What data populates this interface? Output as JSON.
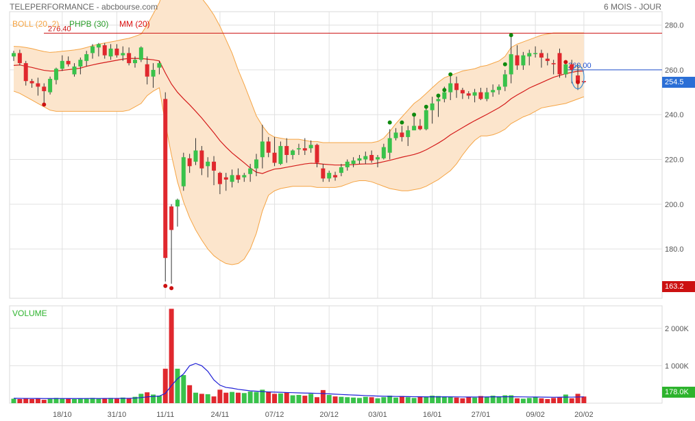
{
  "header": {
    "title": "TELEPERFORMANCE - abcbourse.com",
    "period": "6 MOIS - JOUR"
  },
  "legend": [
    {
      "label": "BOLL (20, 2)",
      "color": "#f5a443"
    },
    {
      "label": "PHPB (30)",
      "color": "#2a9d2a"
    },
    {
      "label": "MM (20)",
      "color": "#dd1111"
    }
  ],
  "colors": {
    "up": "#39c24b",
    "down": "#e0282e",
    "ma": "#d41a1a",
    "band_fill": "#fce5cc",
    "band_line": "#f5a443",
    "vol_ma": "#1e1ed6",
    "dot_high": "#0f8a0f",
    "dot_low": "#cc1111",
    "grid": "#e0e0e0"
  },
  "volume_panel": {
    "title": "VOLUME"
  },
  "chart_data": [
    {
      "type": "candlestick",
      "title": "",
      "ylim": [
        158,
        286
      ],
      "yticks": [
        "280.0",
        "260.0",
        "240.0",
        "220.0",
        "200.0",
        "180.0"
      ],
      "ytick_values": [
        280,
        260,
        240,
        220,
        200,
        180
      ],
      "xticks": [
        {
          "label": "18/10",
          "index": 8
        },
        {
          "label": "31/10",
          "index": 17
        },
        {
          "label": "11/11",
          "index": 25
        },
        {
          "label": "24/11",
          "index": 34
        },
        {
          "label": "07/12",
          "index": 43
        },
        {
          "label": "20/12",
          "index": 52
        },
        {
          "label": "03/01",
          "index": 60
        },
        {
          "label": "16/01",
          "index": 69
        },
        {
          "label": "27/01",
          "index": 77
        },
        {
          "label": "09/02",
          "index": 86
        },
        {
          "label": "20/02",
          "index": 94
        }
      ],
      "hlines": [
        {
          "value": 276.4,
          "label": "276.40",
          "color": "#cc1111"
        },
        {
          "value": 260.0,
          "label": "260.00",
          "color": "#1f4fcf"
        }
      ],
      "last_price": {
        "value": 254.5,
        "label": "254.5",
        "color": "#2b6fd6"
      },
      "last_low": {
        "value": 163.2,
        "label": "163.2",
        "color": "#cc1111"
      },
      "candles": [
        [
          266.0,
          268.5,
          264.0,
          267.5
        ],
        [
          267.5,
          269.0,
          262.0,
          263.0
        ],
        [
          263.0,
          264.0,
          253.0,
          255.0
        ],
        [
          255.0,
          256.0,
          252.0,
          254.0
        ],
        [
          254.0,
          256.5,
          248.5,
          252.5
        ],
        [
          252.5,
          254.0,
          245.0,
          250.5
        ],
        [
          250.0,
          257.0,
          249.0,
          256.0
        ],
        [
          255.5,
          261.0,
          253.5,
          260.5
        ],
        [
          260.5,
          266.5,
          259.5,
          264.0
        ],
        [
          264.0,
          266.0,
          261.5,
          262.5
        ],
        [
          258.0,
          263.0,
          257.0,
          261.5
        ],
        [
          261.5,
          265.5,
          258.0,
          264.5
        ],
        [
          264.0,
          268.5,
          261.5,
          267.0
        ],
        [
          267.5,
          271.5,
          265.0,
          270.5
        ],
        [
          270.0,
          272.0,
          266.0,
          271.5
        ],
        [
          271.0,
          272.0,
          265.0,
          266.5
        ],
        [
          266.0,
          271.5,
          264.5,
          269.5
        ],
        [
          269.5,
          271.5,
          265.5,
          266.5
        ],
        [
          266.5,
          270.5,
          264.0,
          267.5
        ],
        [
          267.5,
          270.0,
          262.0,
          263.0
        ],
        [
          263.0,
          266.0,
          261.0,
          264.5
        ],
        [
          264.5,
          270.5,
          263.5,
          270.0
        ],
        [
          262.5,
          266.0,
          253.5,
          257.0
        ],
        [
          257.0,
          263.0,
          252.0,
          260.0
        ],
        [
          261.0,
          264.0,
          258.0,
          263.0
        ],
        [
          247.0,
          250.0,
          165.5,
          176.0
        ],
        [
          199.0,
          200.0,
          164.5,
          188.5
        ],
        [
          199.0,
          202.5,
          190.0,
          202.0
        ],
        [
          208.0,
          223.0,
          206.0,
          221.0
        ],
        [
          220.5,
          222.5,
          214.0,
          217.0
        ],
        [
          219.0,
          229.5,
          217.5,
          224.0
        ],
        [
          224.0,
          226.0,
          213.0,
          216.0
        ],
        [
          217.0,
          221.0,
          212.0,
          219.0
        ],
        [
          219.0,
          221.5,
          208.5,
          215.0
        ],
        [
          214.0,
          214.5,
          204.5,
          209.0
        ],
        [
          212.0,
          214.0,
          206.0,
          211.0
        ],
        [
          210.0,
          215.5,
          207.5,
          213.0
        ],
        [
          213.0,
          216.0,
          209.5,
          211.0
        ],
        [
          212.0,
          214.0,
          210.0,
          213.0
        ],
        [
          213.5,
          218.0,
          210.0,
          216.0
        ],
        [
          216.0,
          222.5,
          212.5,
          220.0
        ],
        [
          221.0,
          235.5,
          216.0,
          228.0
        ],
        [
          228.0,
          230.0,
          221.0,
          223.0
        ],
        [
          223.0,
          230.0,
          217.0,
          218.5
        ],
        [
          218.0,
          228.0,
          217.5,
          226.0
        ],
        [
          226.0,
          229.5,
          218.5,
          222.0
        ],
        [
          222.0,
          224.5,
          220.0,
          224.0
        ],
        [
          224.5,
          227.0,
          222.0,
          225.0
        ],
        [
          225.0,
          229.5,
          222.0,
          224.0
        ],
        [
          225.0,
          228.5,
          223.0,
          226.5
        ],
        [
          226.5,
          227.0,
          216.5,
          218.5
        ],
        [
          216.0,
          218.0,
          210.0,
          211.5
        ],
        [
          211.5,
          215.0,
          210.0,
          214.0
        ],
        [
          213.0,
          214.5,
          210.5,
          212.0
        ],
        [
          214.0,
          218.0,
          212.5,
          216.5
        ],
        [
          216.5,
          220.0,
          215.0,
          219.0
        ],
        [
          218.0,
          221.0,
          216.5,
          219.5
        ],
        [
          219.5,
          222.0,
          218.0,
          220.5
        ],
        [
          220.0,
          223.5,
          218.0,
          221.5
        ],
        [
          222.0,
          224.0,
          218.5,
          219.5
        ],
        [
          220.0,
          222.0,
          216.5,
          221.0
        ],
        [
          220.5,
          227.0,
          220.0,
          225.5
        ],
        [
          223.0,
          233.5,
          220.0,
          229.5
        ],
        [
          229.5,
          234.0,
          228.5,
          232.0
        ],
        [
          232.0,
          235.0,
          228.0,
          230.0
        ],
        [
          230.0,
          235.0,
          226.0,
          233.0
        ],
        [
          233.0,
          240.5,
          233.0,
          235.0
        ],
        [
          235.0,
          238.0,
          233.0,
          233.5
        ],
        [
          233.5,
          243.5,
          233.0,
          242.0
        ],
        [
          242.0,
          248.0,
          236.0,
          245.0
        ],
        [
          246.0,
          249.0,
          239.0,
          247.0
        ],
        [
          247.0,
          252.5,
          245.5,
          250.0
        ],
        [
          250.0,
          258.0,
          246.5,
          254.0
        ],
        [
          254.0,
          257.0,
          247.5,
          251.0
        ],
        [
          251.0,
          252.0,
          247.0,
          249.5
        ],
        [
          249.5,
          250.5,
          247.0,
          248.5
        ],
        [
          248.5,
          251.5,
          245.5,
          250.0
        ],
        [
          250.0,
          252.0,
          246.5,
          247.0
        ],
        [
          247.0,
          252.0,
          246.0,
          250.0
        ],
        [
          250.0,
          253.5,
          248.0,
          251.0
        ],
        [
          251.0,
          253.5,
          249.0,
          252.5
        ],
        [
          252.5,
          260.0,
          250.5,
          258.0
        ],
        [
          258.0,
          275.0,
          254.0,
          267.0
        ],
        [
          266.5,
          271.0,
          260.0,
          262.0
        ],
        [
          262.0,
          268.0,
          260.0,
          266.5
        ],
        [
          266.0,
          269.0,
          262.0,
          267.5
        ],
        [
          267.5,
          270.5,
          265.5,
          267.5
        ],
        [
          267.5,
          269.0,
          261.0,
          265.5
        ],
        [
          265.0,
          267.5,
          262.0,
          264.0
        ],
        [
          263.0,
          264.5,
          258.0,
          262.5
        ],
        [
          267.5,
          269.5,
          256.5,
          258.0
        ],
        [
          258.0,
          263.0,
          256.5,
          262.5
        ],
        [
          262.5,
          264.5,
          254.0,
          260.0
        ],
        [
          257.5,
          262.5,
          251.0,
          254.5
        ],
        [
          255.0,
          255.0,
          254.0,
          254.5
        ]
      ],
      "ma20": [
        262.0,
        262.2,
        261.6,
        261.1,
        260.4,
        259.8,
        259.5,
        259.5,
        259.8,
        260.1,
        260.4,
        260.8,
        261.6,
        262.2,
        262.8,
        263.3,
        263.8,
        264.3,
        264.8,
        265.1,
        265.1,
        265.1,
        264.8,
        264.5,
        264.0,
        258.6,
        253.7,
        250.0,
        247.1,
        244.4,
        241.5,
        238.5,
        235.2,
        231.9,
        228.4,
        225.5,
        222.9,
        220.7,
        218.5,
        216.2,
        214.3,
        213.7,
        214.8,
        215.7,
        216.0,
        216.5,
        217.0,
        217.5,
        218.0,
        218.3,
        218.2,
        217.9,
        217.7,
        217.5,
        217.5,
        217.6,
        217.7,
        217.9,
        218.0,
        218.0,
        218.4,
        219.0,
        219.6,
        220.3,
        221.0,
        221.6,
        222.2,
        223.1,
        224.3,
        225.8,
        227.3,
        229.0,
        231.0,
        232.6,
        234.2,
        235.8,
        237.3,
        238.7,
        240.1,
        241.6,
        243.1,
        244.9,
        247.1,
        248.8,
        250.3,
        251.9,
        253.1,
        254.3,
        255.5,
        256.7,
        257.5,
        258.3,
        258.9,
        259.4,
        259.5
      ],
      "boll_upper": [
        270.5,
        270.4,
        270.0,
        269.5,
        268.8,
        268.2,
        267.8,
        268.0,
        268.3,
        268.6,
        268.9,
        269.3,
        270.0,
        270.8,
        271.5,
        272.0,
        272.5,
        273.0,
        273.6,
        274.1,
        275.0,
        276.0,
        280.0,
        285.0,
        290.0,
        298.0,
        300.0,
        300.0,
        300.0,
        300.0,
        295.5,
        292.0,
        288.5,
        284.5,
        279.5,
        273.5,
        267.5,
        260.0,
        253.5,
        246.5,
        239.5,
        235.0,
        231.5,
        230.0,
        229.5,
        229.0,
        229.0,
        229.0,
        228.5,
        228.0,
        228.0,
        227.5,
        227.5,
        227.5,
        227.5,
        227.5,
        227.5,
        227.5,
        227.5,
        227.5,
        228.0,
        229.5,
        232.5,
        236.0,
        239.0,
        242.0,
        245.0,
        247.0,
        249.5,
        252.0,
        254.5,
        256.5,
        257.5,
        258.5,
        259.5,
        260.0,
        260.5,
        261.5,
        262.0,
        263.0,
        264.0,
        266.0,
        270.0,
        271.5,
        272.5,
        273.5,
        274.5,
        275.5,
        276.0,
        276.5,
        276.5,
        276.5,
        276.5,
        276.5,
        276.5
      ],
      "boll_lower": [
        250.5,
        249.5,
        248.0,
        246.5,
        245.0,
        243.5,
        242.0,
        241.5,
        241.5,
        241.5,
        241.5,
        241.5,
        241.5,
        241.5,
        241.5,
        241.5,
        241.5,
        241.5,
        241.5,
        242.0,
        243.5,
        245.0,
        248.5,
        250.5,
        252.0,
        236.0,
        222.0,
        210.0,
        201.0,
        194.0,
        188.5,
        184.0,
        180.0,
        177.0,
        175.0,
        173.5,
        173.0,
        173.5,
        175.5,
        180.0,
        187.0,
        197.0,
        204.0,
        206.0,
        207.0,
        207.5,
        208.0,
        208.0,
        208.0,
        208.0,
        207.5,
        207.5,
        207.5,
        207.5,
        208.0,
        209.0,
        210.0,
        210.5,
        210.5,
        210.0,
        209.0,
        208.0,
        207.0,
        206.5,
        206.0,
        206.0,
        206.5,
        207.0,
        208.0,
        209.5,
        211.0,
        213.0,
        215.0,
        218.0,
        222.0,
        225.5,
        228.5,
        230.5,
        230.5,
        231.0,
        232.0,
        233.5,
        236.0,
        237.5,
        239.0,
        240.0,
        241.5,
        243.0,
        243.5,
        244.0,
        244.5,
        245.0,
        246.0,
        247.0,
        248.0
      ],
      "dots": [
        {
          "index": 5,
          "value": 244.5,
          "kind": "low"
        },
        {
          "index": 25,
          "value": 163.5,
          "kind": "low"
        },
        {
          "index": 26,
          "value": 162.5,
          "kind": "low"
        },
        {
          "index": 62,
          "value": 236.5,
          "kind": "high"
        },
        {
          "index": 64,
          "value": 236.5,
          "kind": "high"
        },
        {
          "index": 66,
          "value": 240.0,
          "kind": "high"
        },
        {
          "index": 68,
          "value": 243.5,
          "kind": "high"
        },
        {
          "index": 70,
          "value": 248.5,
          "kind": "high"
        },
        {
          "index": 71,
          "value": 251.0,
          "kind": "high"
        },
        {
          "index": 72,
          "value": 258.0,
          "kind": "high"
        },
        {
          "index": 81,
          "value": 262.5,
          "kind": "high"
        },
        {
          "index": 82,
          "value": 275.5,
          "kind": "high"
        },
        {
          "index": 91,
          "value": 263.5,
          "kind": "low"
        },
        {
          "index": 93,
          "value": 254.5,
          "kind": "low"
        }
      ],
      "circle_index": 93
    },
    {
      "type": "bar",
      "title": "VOLUME",
      "ylim": [
        0,
        2600000
      ],
      "yticks": [
        "2 000K",
        "1 000K"
      ],
      "ytick_values": [
        2000000,
        1000000
      ],
      "last_volume": {
        "value": 178000,
        "label": "178.0K",
        "color": "#2db32d"
      },
      "volumes": [
        120000,
        110000,
        130000,
        110000,
        120000,
        90000,
        120000,
        140000,
        130000,
        120000,
        110000,
        120000,
        130000,
        140000,
        120000,
        130000,
        140000,
        120000,
        150000,
        130000,
        170000,
        250000,
        290000,
        230000,
        200000,
        920000,
        2520000,
        920000,
        750000,
        480000,
        280000,
        250000,
        240000,
        180000,
        360000,
        280000,
        300000,
        280000,
        270000,
        310000,
        300000,
        360000,
        310000,
        250000,
        260000,
        290000,
        210000,
        220000,
        200000,
        250000,
        160000,
        350000,
        220000,
        180000,
        170000,
        160000,
        150000,
        140000,
        170000,
        160000,
        130000,
        160000,
        200000,
        150000,
        190000,
        160000,
        140000,
        180000,
        170000,
        200000,
        190000,
        180000,
        170000,
        150000,
        130000,
        160000,
        150000,
        190000,
        170000,
        200000,
        180000,
        210000,
        210000,
        130000,
        120000,
        140000,
        160000,
        130000,
        110000,
        140000,
        150000,
        230000,
        130000,
        250000,
        178000
      ],
      "vol_ma": [
        130000,
        128000,
        127000,
        126000,
        126000,
        124000,
        123000,
        124000,
        125000,
        124000,
        124000,
        124000,
        125000,
        126000,
        125000,
        126000,
        127000,
        127000,
        128000,
        129000,
        136000,
        150000,
        168000,
        180000,
        190000,
        260000,
        470000,
        650000,
        780000,
        1000000,
        1060000,
        1000000,
        850000,
        620000,
        480000,
        420000,
        400000,
        370000,
        350000,
        330000,
        320000,
        310000,
        300000,
        295000,
        290000,
        285000,
        280000,
        275000,
        270000,
        268000,
        262000,
        258000,
        250000,
        240000,
        232000,
        224000,
        217000,
        210000,
        203000,
        197000,
        190000,
        185000,
        183000,
        180000,
        178000,
        176000,
        173000,
        171000,
        170000,
        170000,
        170000,
        170000,
        169000,
        168000,
        166000,
        165000,
        165000,
        166000,
        167000,
        169000,
        170000,
        171000,
        172000,
        170000,
        168000,
        166000,
        165000,
        163000,
        160000,
        159000,
        160000,
        163000,
        161000,
        166000,
        168000
      ]
    }
  ]
}
